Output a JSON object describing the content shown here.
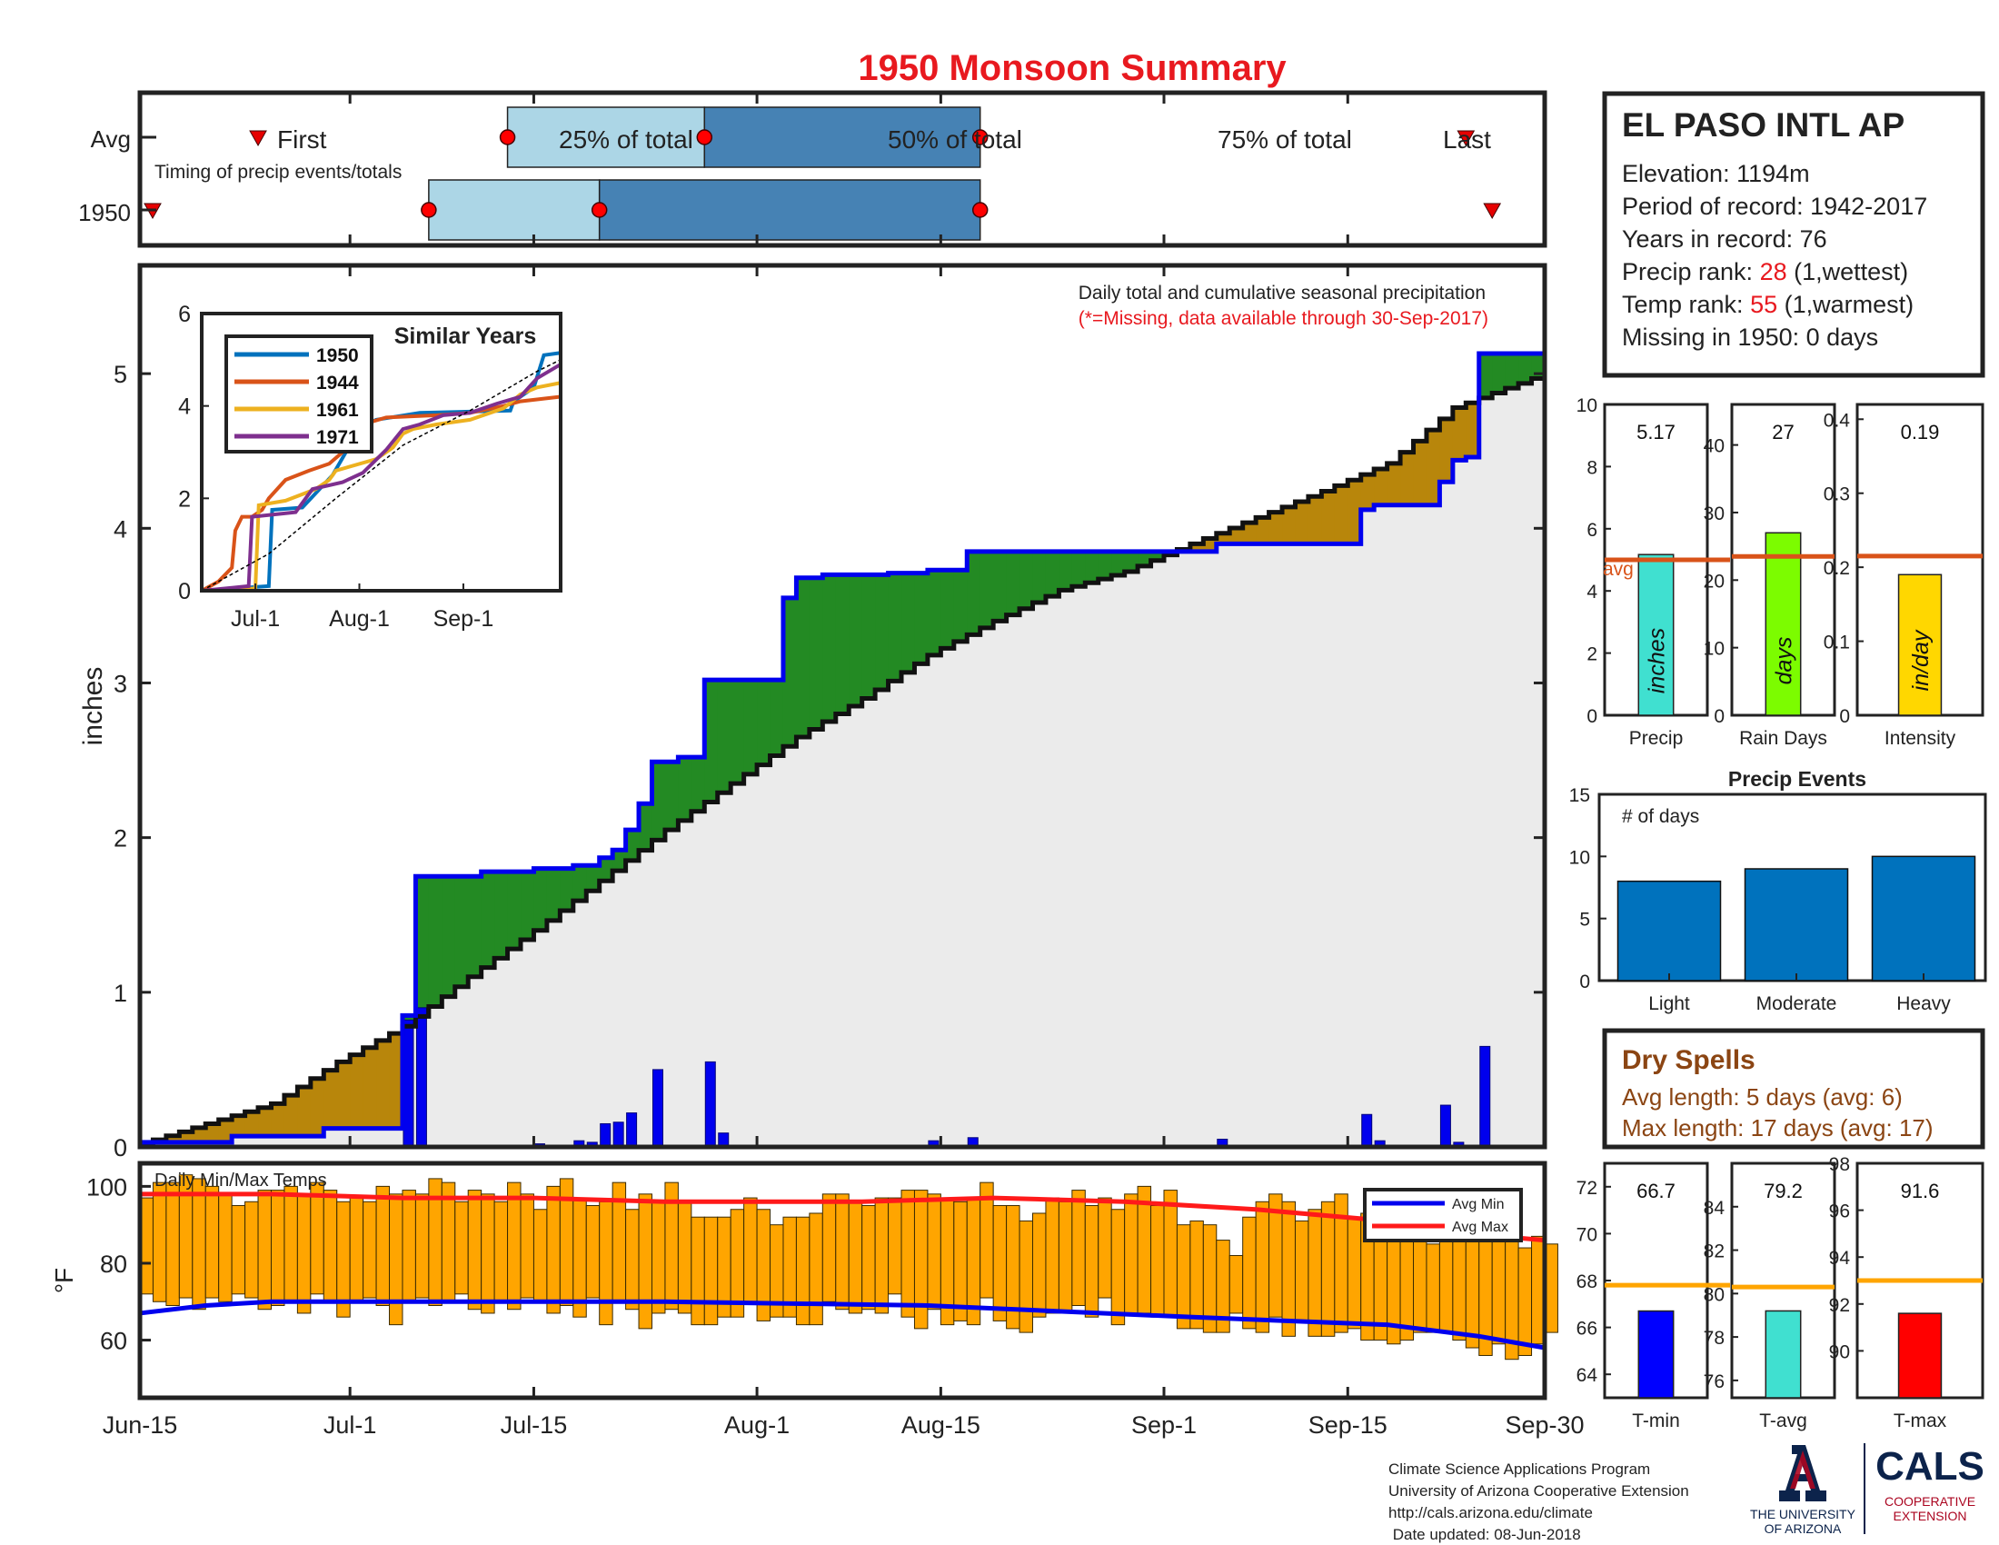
{
  "title": "1950 Monsoon Summary",
  "timing": {
    "row_labels": [
      "Avg",
      "1950"
    ],
    "caption": "Timing of precip events/totals",
    "marker_labels": {
      "first": "First",
      "p25": "25% of total",
      "p50": "50% of total",
      "p75": "75% of total",
      "last": "Last"
    },
    "avg": {
      "first": "Jun-24",
      "p25": "Jul-13",
      "p50": "Jul-28",
      "p75": "Aug-18",
      "last": "Sep-24"
    },
    "y1950": {
      "first": "Jun-15",
      "p25": "Jul-7",
      "p50": "Jul-20",
      "p75": "Aug-18",
      "last": "Sep-26"
    }
  },
  "station": {
    "name": "EL PASO INTL AP",
    "elevation_label": "Elevation: 1194m",
    "period_label": "Period of record: 1942-2017",
    "years_label": "Years in record: 76",
    "precip_rank_prefix": "Precip rank: ",
    "precip_rank_value": "28",
    "precip_rank_suffix": " (1,wettest)",
    "temp_rank_prefix": "Temp rank: ",
    "temp_rank_value": "55",
    "temp_rank_suffix": " (1,warmest)",
    "missing_label": "Missing in 1950: 0 days"
  },
  "dry_spells": {
    "title": "Dry Spells",
    "avg_line": "Avg length: 5 days (avg: 6)",
    "max_line": "Max length: 17 days (avg: 17)"
  },
  "footer": {
    "lines": [
      "Climate Science Applications Program",
      "University of Arizona Cooperative Extension",
      "http://cals.arizona.edu/climate",
      " Date updated: 08-Jun-2018"
    ],
    "ua_line1": "THE UNIVERSITY",
    "ua_line2": "OF ARIZONA",
    "cals": "CALS",
    "cals_line1": "COOPERATIVE",
    "cals_line2": "EXTENSION"
  },
  "colors": {
    "title_red": "#e8191f",
    "wet_green": "#238a23",
    "dry_brown": "#b8860b",
    "gray_fill": "#ebebeb",
    "daily_blue": "#0000ee",
    "light_blue": "#acd6e6",
    "mid_blue": "#4682b4",
    "orange_bar": "#ffa500",
    "avg_orange": "#d95319",
    "dry_brown_text": "#8b4513",
    "ua_navy": "#0c234b",
    "ua_red": "#ab0520"
  },
  "chart_data": [
    {
      "type": "area",
      "name": "cumulative",
      "annotation_line1": "Daily total and cumulative seasonal precipitation",
      "annotation_line2": "(*=Missing, data available through 30-Sep-2017)",
      "ylabel": "inches",
      "ylim": [
        0,
        5.7
      ],
      "yticks": [
        0,
        1,
        2,
        3,
        4,
        5
      ],
      "xticks": [
        "Jun-15",
        "Jul-1",
        "Jul-15",
        "Aug-1",
        "Aug-15",
        "Sep-1",
        "Sep-15",
        "Sep-30"
      ],
      "xtick_days": [
        0,
        16,
        30,
        47,
        61,
        78,
        92,
        107
      ],
      "x_range_days": [
        0,
        107
      ],
      "cumulative_1950": [
        [
          0,
          0.03
        ],
        [
          7,
          0.07
        ],
        [
          14,
          0.12
        ],
        [
          20,
          0.85
        ],
        [
          21,
          1.75
        ],
        [
          26,
          1.78
        ],
        [
          30,
          1.8
        ],
        [
          33,
          1.82
        ],
        [
          35,
          1.87
        ],
        [
          36,
          1.92
        ],
        [
          37,
          2.05
        ],
        [
          38,
          2.22
        ],
        [
          39,
          2.47
        ],
        [
          40,
          2.49
        ],
        [
          39,
          2.49
        ],
        [
          41,
          2.52
        ],
        [
          43,
          3.02
        ],
        [
          48,
          3.02
        ],
        [
          49,
          3.55
        ],
        [
          50,
          3.68
        ],
        [
          55,
          3.68
        ],
        [
          52,
          3.7
        ],
        [
          57,
          3.71
        ],
        [
          59,
          3.71
        ],
        [
          60,
          3.73
        ],
        [
          63,
          3.85
        ],
        [
          64,
          3.85
        ],
        [
          78,
          3.85
        ],
        [
          82,
          3.9
        ],
        [
          92,
          3.9
        ],
        [
          93,
          4.12
        ],
        [
          94,
          4.15
        ],
        [
          98,
          4.15
        ],
        [
          99,
          4.3
        ],
        [
          100,
          4.44
        ],
        [
          101,
          4.46
        ],
        [
          102,
          5.13
        ],
        [
          107,
          5.16
        ]
      ],
      "cumulative_avg": [
        [
          0,
          0.02
        ],
        [
          10,
          0.28
        ],
        [
          15,
          0.55
        ],
        [
          20,
          0.78
        ],
        [
          25,
          1.1
        ],
        [
          30,
          1.4
        ],
        [
          35,
          1.72
        ],
        [
          40,
          2.05
        ],
        [
          45,
          2.35
        ],
        [
          50,
          2.65
        ],
        [
          55,
          2.9
        ],
        [
          60,
          3.18
        ],
        [
          65,
          3.4
        ],
        [
          70,
          3.6
        ],
        [
          75,
          3.72
        ],
        [
          80,
          3.9
        ],
        [
          85,
          4.07
        ],
        [
          90,
          4.24
        ],
        [
          95,
          4.42
        ],
        [
          100,
          4.78
        ],
        [
          107,
          5.0
        ]
      ],
      "daily_bars": [
        [
          20,
          0.82
        ],
        [
          21,
          0.9
        ],
        [
          30,
          0.02
        ],
        [
          33,
          0.04
        ],
        [
          34,
          0.03
        ],
        [
          35,
          0.15
        ],
        [
          36,
          0.16
        ],
        [
          37,
          0.22
        ],
        [
          39,
          0.5
        ],
        [
          43,
          0.55
        ],
        [
          44,
          0.09
        ],
        [
          60,
          0.04
        ],
        [
          63,
          0.06
        ],
        [
          82,
          0.05
        ],
        [
          93,
          0.21
        ],
        [
          94,
          0.04
        ],
        [
          99,
          0.27
        ],
        [
          100,
          0.03
        ],
        [
          102,
          0.65
        ]
      ],
      "legend": [
        "1950",
        "1944",
        "1961",
        "1971"
      ]
    },
    {
      "type": "line",
      "name": "similar_years",
      "title": "Similar Years",
      "ylim": [
        0,
        6
      ],
      "yticks": [
        0,
        2,
        4,
        6
      ],
      "xticks": [
        "Jul-1",
        "Aug-1",
        "Sep-1"
      ],
      "xtick_days": [
        16,
        47,
        78
      ],
      "x_range_days": [
        0,
        107
      ],
      "series": [
        {
          "name": "1950",
          "color": "#0072bd",
          "points": [
            [
              0,
              0
            ],
            [
              20,
              0.1
            ],
            [
              21,
              1.75
            ],
            [
              30,
              1.8
            ],
            [
              39,
              2.5
            ],
            [
              43,
              3.0
            ],
            [
              49,
              3.6
            ],
            [
              52,
              3.7
            ],
            [
              65,
              3.85
            ],
            [
              92,
              3.9
            ],
            [
              93,
              4.1
            ],
            [
              99,
              4.4
            ],
            [
              102,
              5.1
            ],
            [
              107,
              5.15
            ]
          ]
        },
        {
          "name": "1944",
          "color": "#d95319",
          "points": [
            [
              0,
              0
            ],
            [
              5,
              0.2
            ],
            [
              9,
              0.5
            ],
            [
              10,
              1.3
            ],
            [
              12,
              1.6
            ],
            [
              15,
              1.6
            ],
            [
              18,
              1.75
            ],
            [
              20,
              2.0
            ],
            [
              25,
              2.4
            ],
            [
              32,
              2.6
            ],
            [
              38,
              2.75
            ],
            [
              42,
              3.0
            ],
            [
              48,
              3.6
            ],
            [
              55,
              3.75
            ],
            [
              70,
              3.8
            ],
            [
              80,
              3.85
            ],
            [
              90,
              4.0
            ],
            [
              95,
              4.1
            ],
            [
              107,
              4.2
            ]
          ]
        },
        {
          "name": "1961",
          "color": "#edb120",
          "points": [
            [
              0,
              0
            ],
            [
              16,
              0.05
            ],
            [
              17,
              1.85
            ],
            [
              25,
              1.95
            ],
            [
              34,
              2.2
            ],
            [
              38,
              2.4
            ],
            [
              40,
              2.6
            ],
            [
              52,
              2.85
            ],
            [
              57,
              3.1
            ],
            [
              60,
              3.4
            ],
            [
              63,
              3.5
            ],
            [
              70,
              3.6
            ],
            [
              80,
              3.7
            ],
            [
              90,
              3.95
            ],
            [
              95,
              4.25
            ],
            [
              100,
              4.4
            ],
            [
              107,
              4.5
            ]
          ]
        },
        {
          "name": "1971",
          "color": "#7e2f8e",
          "points": [
            [
              0,
              0
            ],
            [
              14,
              0.1
            ],
            [
              15,
              1.6
            ],
            [
              28,
              1.7
            ],
            [
              33,
              2.2
            ],
            [
              42,
              2.35
            ],
            [
              48,
              2.55
            ],
            [
              55,
              3.05
            ],
            [
              60,
              3.5
            ],
            [
              65,
              3.6
            ],
            [
              72,
              3.8
            ],
            [
              80,
              3.85
            ],
            [
              88,
              4.05
            ],
            [
              95,
              4.2
            ],
            [
              100,
              4.6
            ],
            [
              107,
              4.9
            ]
          ]
        },
        {
          "name": "avg",
          "color": "#000000",
          "points": [
            [
              0,
              0
            ],
            [
              20,
              0.8
            ],
            [
              40,
              2.0
            ],
            [
              60,
              3.15
            ],
            [
              80,
              3.9
            ],
            [
              100,
              4.75
            ],
            [
              107,
              5.0
            ]
          ]
        }
      ]
    },
    {
      "type": "bar",
      "name": "daily_temps",
      "title": "Daily Min/Max Temps",
      "ylabel": "°F",
      "ylim": [
        45,
        106
      ],
      "yticks": [
        60,
        80,
        100
      ],
      "x_range_days": [
        0,
        107
      ],
      "legend": [
        "Avg Min",
        "Avg Max"
      ],
      "tmax": [
        97,
        101,
        101,
        103,
        102,
        100,
        98,
        95,
        96,
        99,
        99,
        100,
        98,
        101,
        99,
        96,
        97,
        96,
        100,
        98,
        99,
        98,
        102,
        101,
        96,
        99,
        98,
        96,
        101,
        98,
        94,
        100,
        102,
        97,
        95,
        96,
        101,
        94,
        98,
        96,
        101,
        96,
        92,
        92,
        92,
        94,
        97,
        94,
        90,
        92,
        92,
        93,
        98,
        98,
        96,
        95,
        97,
        97,
        99,
        99,
        98,
        97,
        96,
        97,
        101,
        95,
        95,
        91,
        93,
        97,
        96,
        99,
        95,
        97,
        94,
        98,
        100,
        95,
        99,
        90,
        91,
        90,
        86,
        82,
        92,
        96,
        98,
        96,
        91,
        94,
        96,
        98,
        92,
        93,
        92,
        90,
        98,
        89,
        85,
        95,
        87,
        92,
        89,
        90,
        91,
        84,
        87,
        85
      ],
      "tmin": [
        72,
        70,
        69,
        71,
        68,
        71,
        70,
        72,
        71,
        68,
        69,
        70,
        67,
        72,
        70,
        66,
        70,
        71,
        69,
        64,
        70,
        71,
        69,
        70,
        72,
        68,
        67,
        70,
        68,
        71,
        70,
        67,
        69,
        66,
        71,
        64,
        70,
        68,
        63,
        67,
        68,
        67,
        64,
        64,
        66,
        66,
        70,
        65,
        66,
        66,
        64,
        64,
        70,
        68,
        67,
        68,
        67,
        72,
        66,
        63,
        68,
        64,
        65,
        64,
        71,
        65,
        63,
        62,
        66,
        67,
        67,
        69,
        66,
        71,
        64,
        67,
        67,
        66,
        66,
        63,
        63,
        62,
        62,
        67,
        63,
        62,
        66,
        61,
        65,
        61,
        61,
        62,
        63,
        60,
        60,
        59,
        60,
        62,
        62,
        62,
        60,
        58,
        56,
        59,
        55,
        56,
        59,
        62
      ],
      "avg_min": [
        [
          0,
          67
        ],
        [
          5,
          69
        ],
        [
          10,
          70
        ],
        [
          20,
          70
        ],
        [
          40,
          70
        ],
        [
          60,
          69
        ],
        [
          80,
          66
        ],
        [
          95,
          64
        ],
        [
          102,
          61
        ],
        [
          107,
          58
        ]
      ],
      "avg_max": [
        [
          0,
          98
        ],
        [
          10,
          98
        ],
        [
          20,
          97
        ],
        [
          30,
          97
        ],
        [
          40,
          96
        ],
        [
          55,
          96
        ],
        [
          65,
          97
        ],
        [
          75,
          96
        ],
        [
          85,
          94
        ],
        [
          95,
          91
        ],
        [
          100,
          88
        ],
        [
          107,
          86
        ]
      ]
    },
    {
      "type": "bar",
      "name": "precip_total",
      "xlabel": "Precip",
      "ylim": [
        0,
        10
      ],
      "yticks": [
        0,
        2,
        4,
        6,
        8,
        10
      ],
      "values": [
        5.17
      ],
      "value_label": "5.17",
      "avg": 5.0,
      "avg_label": "avg",
      "bar_label": "inches",
      "bar_color": "#40e0d0"
    },
    {
      "type": "bar",
      "name": "rain_days",
      "xlabel": "Rain Days",
      "ylim": [
        0,
        46
      ],
      "yticks": [
        0,
        10,
        20,
        30,
        40
      ],
      "values": [
        27
      ],
      "value_label": "27",
      "avg": 23.5,
      "bar_label": "days",
      "bar_color": "#7cfc00"
    },
    {
      "type": "bar",
      "name": "intensity",
      "xlabel": "Intensity",
      "ylim": [
        0,
        0.42
      ],
      "yticks": [
        0,
        0.1,
        0.2,
        0.3,
        0.4
      ],
      "values": [
        0.19
      ],
      "value_label": "0.19",
      "avg": 0.215,
      "bar_label": "in/day",
      "bar_color": "#ffd700"
    },
    {
      "type": "bar",
      "name": "precip_events",
      "title": "Precip Events",
      "ylabel": "# of days",
      "categories": [
        "Light",
        "Moderate",
        "Heavy"
      ],
      "values": [
        8,
        9,
        10
      ],
      "ylim": [
        0,
        15
      ],
      "yticks": [
        0,
        5,
        10,
        15
      ]
    },
    {
      "type": "bar",
      "name": "t_min",
      "xlabel": "T-min",
      "ylim": [
        63,
        73
      ],
      "yticks": [
        64,
        66,
        68,
        70,
        72
      ],
      "values": [
        66.7
      ],
      "value_label": "66.7",
      "avg": 67.8,
      "bar_color": "#0000ff"
    },
    {
      "type": "bar",
      "name": "t_avg",
      "xlabel": "T-avg",
      "ylim": [
        75.2,
        86
      ],
      "yticks": [
        76,
        78,
        80,
        82,
        84
      ],
      "values": [
        79.2
      ],
      "value_label": "79.2",
      "avg": 80.3,
      "bar_color": "#40e0d0"
    },
    {
      "type": "bar",
      "name": "t_max",
      "xlabel": "T-max",
      "ylim": [
        88,
        98
      ],
      "yticks": [
        90,
        92,
        94,
        96,
        98
      ],
      "values": [
        91.6
      ],
      "value_label": "91.6",
      "avg": 93.0,
      "bar_color": "#ff0000"
    }
  ]
}
